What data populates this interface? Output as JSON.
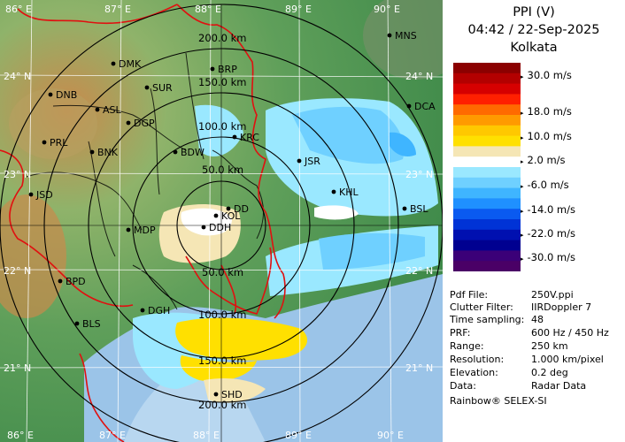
{
  "header": {
    "product": "PPI (V)",
    "datetime": "04:42 / 22-Sep-2025",
    "station": "Kolkata"
  },
  "scale": {
    "labels": [
      "30.0 m/s",
      "18.0 m/s",
      "10.0 m/s",
      "2.0 m/s",
      "-6.0 m/s",
      "-14.0 m/s",
      "-22.0 m/s",
      "-30.0 m/s"
    ],
    "colors": [
      "#8b0000",
      "#b30000",
      "#d60000",
      "#ff2000",
      "#ff6a00",
      "#ff9a00",
      "#ffc800",
      "#ffe000",
      "#f5e6b5",
      "#ffffff",
      "#9ae8ff",
      "#6fd0ff",
      "#3fb5ff",
      "#1f90ff",
      "#0a5af0",
      "#0033d6",
      "#0010b0",
      "#000090",
      "#3b0078",
      "#4a0066"
    ]
  },
  "info": [
    {
      "k": "Pdf File:",
      "v": "250V.ppi"
    },
    {
      "k": "Clutter Filter:",
      "v": "IIRDoppler 7"
    },
    {
      "k": "Time sampling:",
      "v": "48"
    },
    {
      "k": "PRF:",
      "v": "600 Hz / 450 Hz"
    },
    {
      "k": "Range:",
      "v": "250 km"
    },
    {
      "k": "Resolution:",
      "v": "1.000 km/pixel"
    },
    {
      "k": "Elevation:",
      "v": "0.2 deg"
    },
    {
      "k": "Data:",
      "v": "Radar Data"
    }
  ],
  "footer": "Rainbow® SELEX-SI",
  "map": {
    "lon_labels": [
      "86° E",
      "87° E",
      "88° E",
      "89° E",
      "90° E"
    ],
    "lat_labels": [
      "24° N",
      "23° N",
      "22° N",
      "21° N"
    ],
    "range_labels": [
      "50.0 km",
      "100.0 km",
      "150.0 km",
      "200.0 km"
    ],
    "stations": [
      "MNS",
      "DMK",
      "BRP",
      "DNB",
      "SUR",
      "DCA",
      "ASL",
      "DGP",
      "KRC",
      "PRL",
      "BNK",
      "BDW",
      "JSR",
      "JSD",
      "KHL",
      "KOL",
      "DD",
      "BSL",
      "MDP",
      "DDH",
      "DGH",
      "BPD",
      "BLS",
      "SHD"
    ]
  }
}
